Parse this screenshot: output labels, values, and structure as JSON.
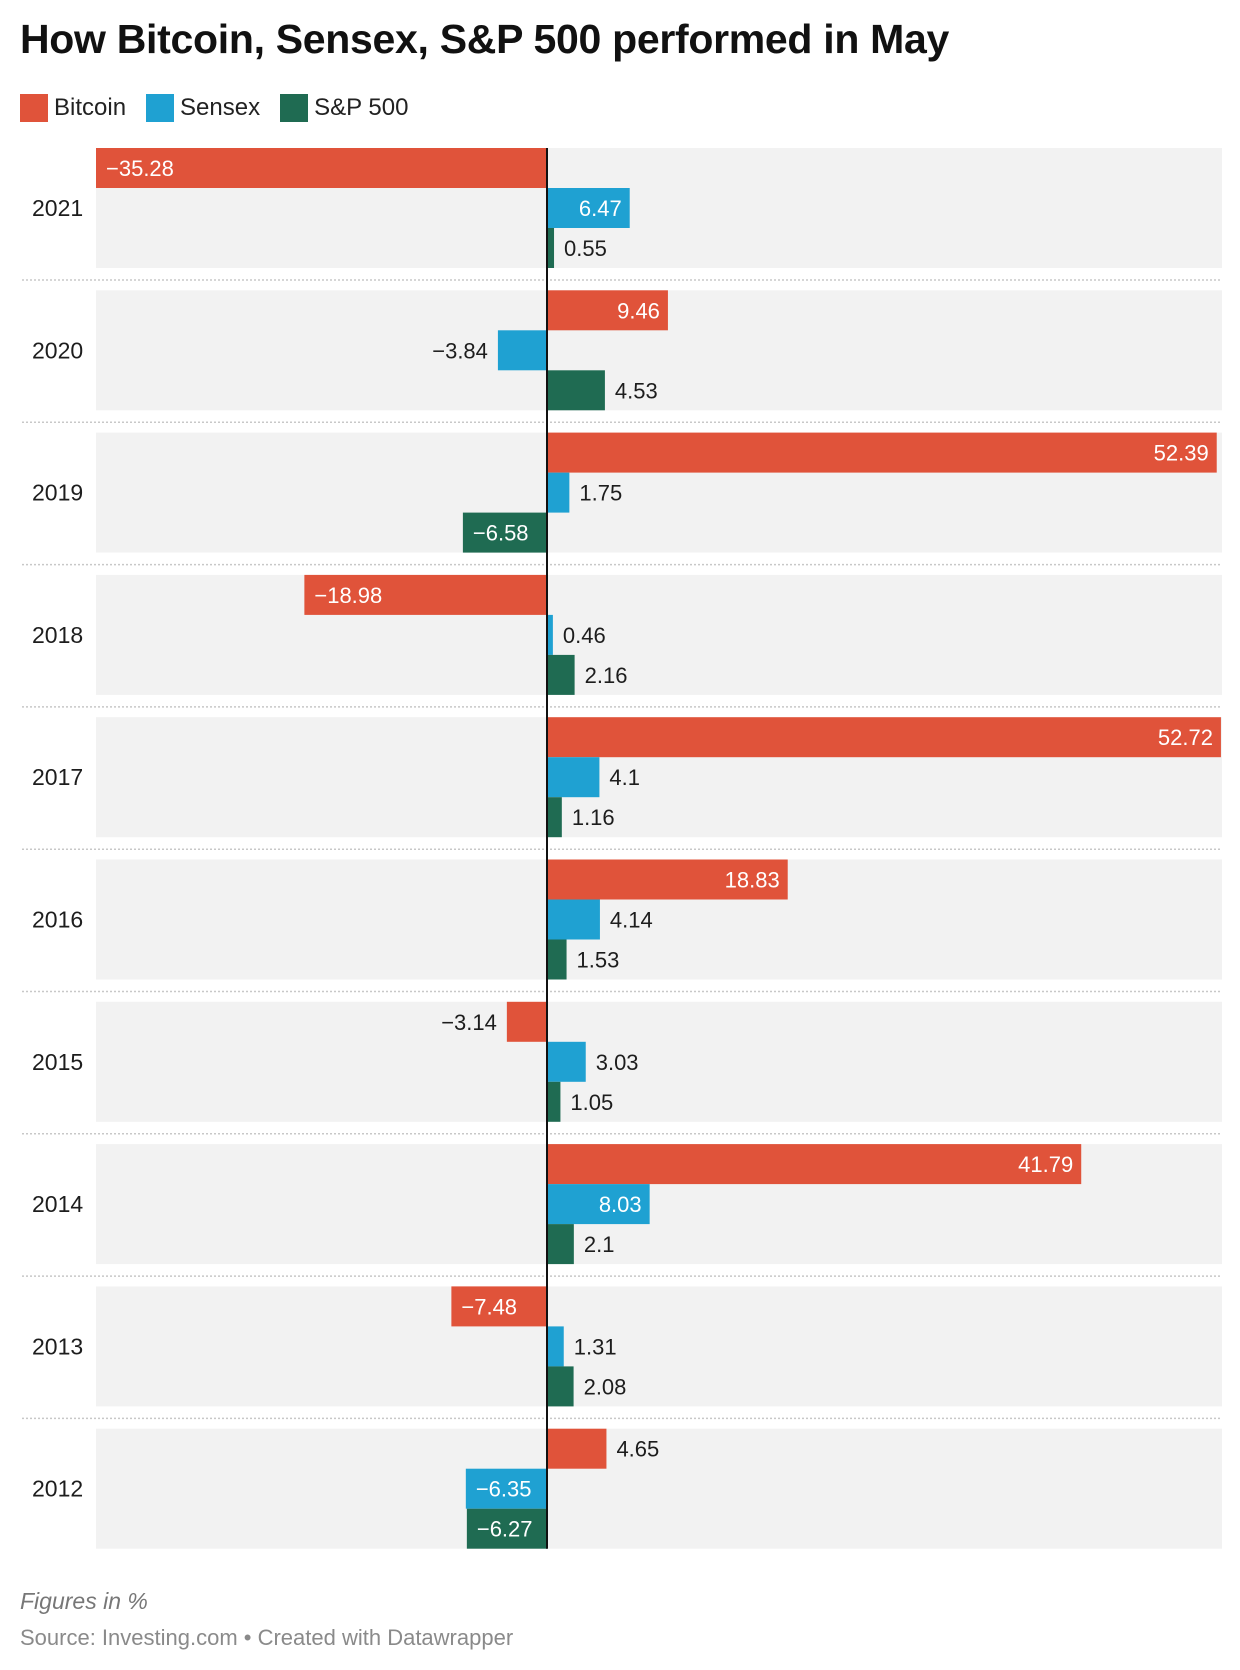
{
  "chart_data": {
    "type": "bar",
    "orientation": "horizontal",
    "title": "How Bitcoin, Sensex, S&P 500 performed in May",
    "categories": [
      "2021",
      "2020",
      "2019",
      "2018",
      "2017",
      "2016",
      "2015",
      "2014",
      "2013",
      "2012"
    ],
    "series": [
      {
        "name": "Bitcoin",
        "color": "#e0533a",
        "values": [
          -35.28,
          9.46,
          52.39,
          -18.98,
          52.72,
          18.83,
          -3.14,
          41.79,
          -7.48,
          4.65
        ],
        "labels": [
          "−35.28",
          "9.46",
          "52.39",
          "−18.98",
          "52.72",
          "18.83",
          "−3.14",
          "41.79",
          "−7.48",
          "4.65"
        ]
      },
      {
        "name": "Sensex",
        "color": "#1fa1d2",
        "values": [
          6.47,
          -3.84,
          1.75,
          0.46,
          4.1,
          4.14,
          3.03,
          8.03,
          1.31,
          -6.35
        ],
        "labels": [
          "6.47",
          "−3.84",
          "1.75",
          "0.46",
          "4.1",
          "4.14",
          "3.03",
          "8.03",
          "1.31",
          "−6.35"
        ]
      },
      {
        "name": "S&P 500",
        "color": "#1f6b52",
        "values": [
          0.55,
          4.53,
          -6.58,
          2.16,
          1.16,
          1.53,
          1.05,
          2.1,
          2.08,
          -6.27
        ],
        "labels": [
          "0.55",
          "4.53",
          "−6.58",
          "2.16",
          "1.16",
          "1.53",
          "1.05",
          "2.1",
          "2.08",
          "−6.27"
        ]
      }
    ],
    "xlabel": "",
    "ylabel": "",
    "xlim": [
      -35.28,
      52.72
    ],
    "legend": "top-left",
    "grid": false,
    "note": "Figures in %"
  },
  "header": {
    "title": "How Bitcoin, Sensex, S&P 500 performed in May"
  },
  "legend": [
    {
      "label": "Bitcoin",
      "color": "#e0533a"
    },
    {
      "label": "Sensex",
      "color": "#1fa1d2"
    },
    {
      "label": "S&P 500",
      "color": "#1f6b52"
    }
  ],
  "footer": {
    "note": "Figures in %",
    "source": "Source: Investing.com • Created with Datawrapper"
  }
}
